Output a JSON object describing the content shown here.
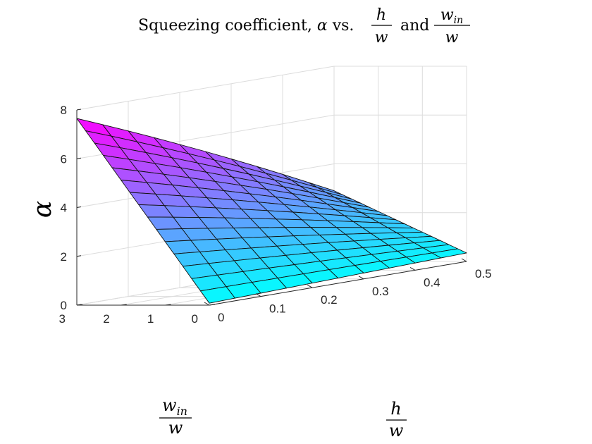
{
  "chart_data": {
    "type": "surface",
    "title": {
      "prefix": "Squeezing coefficient, ",
      "symbol": "α",
      "middle": " vs. ",
      "frac1_num": "h",
      "frac1_den": "w",
      "joiner": " and ",
      "frac2_num_base": "w",
      "frac2_num_sub": "in",
      "frac2_den": "w"
    },
    "xlabel": {
      "num": "h",
      "den": "w"
    },
    "ylabel": {
      "num_base": "w",
      "num_sub": "in",
      "den": "w"
    },
    "zlabel": "α",
    "xlim": [
      0,
      0.5
    ],
    "ylim": [
      0,
      3
    ],
    "zlim": [
      0,
      8
    ],
    "x_ticks": [
      0,
      0.1,
      0.2,
      0.3,
      0.4,
      0.5
    ],
    "x_tick_labels": [
      "0",
      "0.1",
      "0.2",
      "0.3",
      "0.4",
      "0.5"
    ],
    "y_ticks": [
      0,
      1,
      2,
      3
    ],
    "y_tick_labels": [
      "0",
      "1",
      "2",
      "3"
    ],
    "z_ticks": [
      0,
      2,
      4,
      6,
      8
    ],
    "z_tick_labels": [
      "0",
      "2",
      "4",
      "6",
      "8"
    ],
    "grid": true,
    "colormap": "cool",
    "colormap_low": "#00ffff",
    "colormap_high": "#ff00ff",
    "x_range": [
      0,
      0.5
    ],
    "y_range": [
      0,
      3
    ],
    "x_divisions": 10,
    "y_divisions": 15,
    "corner_values": {
      "x0_y0": 0.08,
      "x0_y3": 7.65,
      "x05_y0": 0.35,
      "x05_y3": 2.9
    },
    "curvature_factor": 0.5
  }
}
